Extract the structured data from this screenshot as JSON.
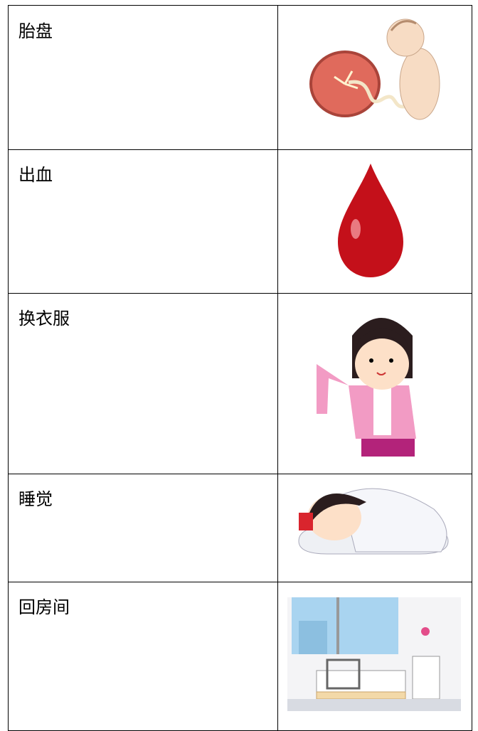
{
  "table": {
    "rows": [
      [
        "胎盘"
      ],
      [
        "出血"
      ],
      [
        "换衣服"
      ],
      [
        "睡觉"
      ],
      [
        "回房间"
      ]
    ]
  }
}
